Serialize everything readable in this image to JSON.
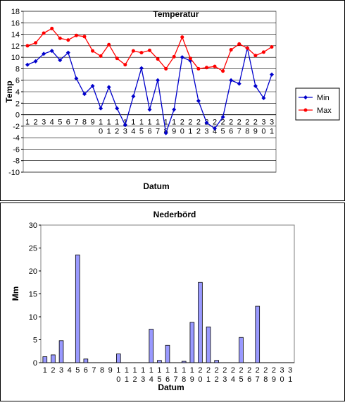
{
  "chart_data": [
    {
      "type": "line",
      "title": "Temperatur",
      "x_label": "Datum",
      "y_label": "Temp",
      "categories": [
        "1",
        "2",
        "3",
        "4",
        "5",
        "6",
        "7",
        "8",
        "9",
        "10",
        "11",
        "12",
        "13",
        "14",
        "15",
        "16",
        "17",
        "18",
        "19",
        "20",
        "21",
        "22",
        "23",
        "24",
        "25",
        "26",
        "27",
        "28",
        "29",
        "30",
        "31"
      ],
      "series": [
        {
          "name": "Min",
          "color": "#0000cc",
          "marker": "diamond",
          "values": [
            8.7,
            9.3,
            10.6,
            11.1,
            9.5,
            10.8,
            6.3,
            3.6,
            5.0,
            1.1,
            4.8,
            1.1,
            -1.8,
            3.2,
            8.1,
            0.9,
            6.0,
            -3.2,
            0.9,
            10.0,
            9.4,
            2.4,
            -1.4,
            -2.4,
            -0.4,
            6.0,
            5.4,
            11.6,
            5.0,
            2.9,
            7.0
          ]
        },
        {
          "name": "Max",
          "color": "#ff0000",
          "marker": "circle",
          "values": [
            12.0,
            12.5,
            14.2,
            15.0,
            13.3,
            13.0,
            13.8,
            13.6,
            11.1,
            10.2,
            12.2,
            9.8,
            8.7,
            11.1,
            10.8,
            11.2,
            9.7,
            8.0,
            10.1,
            13.5,
            9.8,
            8.0,
            8.2,
            8.4,
            7.6,
            11.3,
            12.3,
            11.6,
            10.3,
            10.9,
            11.8
          ]
        }
      ],
      "ylim": [
        -10,
        18
      ],
      "yticks": [
        -10,
        -8,
        -6,
        -4,
        -2,
        0,
        2,
        4,
        6,
        8,
        10,
        12,
        14,
        16,
        18
      ],
      "grid": true,
      "legend": "right"
    },
    {
      "type": "bar",
      "title": "Nederbörd",
      "x_label": "Datum",
      "y_label": "Mm",
      "categories": [
        "1",
        "2",
        "3",
        "4",
        "5",
        "6",
        "7",
        "8",
        "9",
        "10",
        "11",
        "12",
        "13",
        "14",
        "15",
        "16",
        "17",
        "18",
        "19",
        "20",
        "21",
        "22",
        "23",
        "24",
        "25",
        "26",
        "27",
        "28",
        "29",
        "30",
        "31"
      ],
      "values": [
        1.3,
        1.7,
        4.8,
        0,
        23.5,
        0.8,
        0,
        0,
        0,
        1.9,
        0,
        0,
        0,
        7.3,
        0.5,
        3.8,
        0,
        0.3,
        8.8,
        17.5,
        7.8,
        0.5,
        0,
        0,
        5.5,
        0,
        12.3,
        0,
        0,
        0,
        0
      ],
      "color": "#9999ff",
      "ylim": [
        0,
        30
      ],
      "yticks": [
        0,
        5,
        10,
        15,
        20,
        25,
        30
      ],
      "grid": false
    }
  ]
}
